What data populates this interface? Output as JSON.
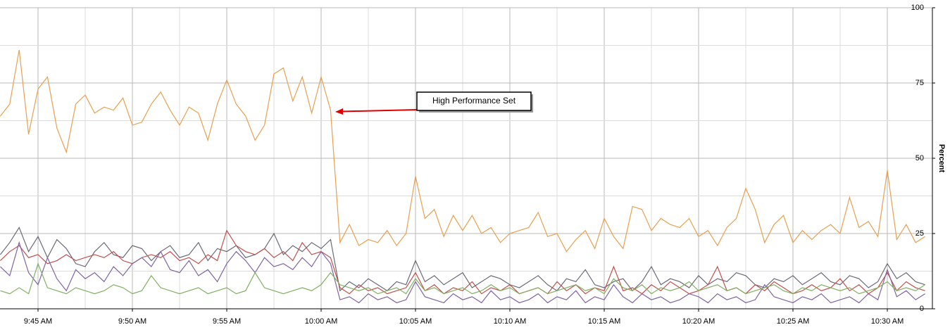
{
  "chart_data": {
    "type": "line",
    "y_label": "Percent",
    "annotation": "High Performance Set",
    "categories": [
      null,
      null,
      null,
      null,
      "9:45 AM",
      null,
      null,
      null,
      null,
      null,
      null,
      null,
      null,
      null,
      "9:50 AM",
      null,
      null,
      null,
      null,
      null,
      null,
      null,
      null,
      null,
      "9:55 AM",
      null,
      null,
      null,
      null,
      null,
      null,
      null,
      null,
      null,
      "10:00 AM",
      null,
      null,
      null,
      null,
      null,
      null,
      null,
      null,
      null,
      "10:05 AM",
      null,
      null,
      null,
      null,
      null,
      null,
      null,
      null,
      null,
      "10:10 AM",
      null,
      null,
      null,
      null,
      null,
      null,
      null,
      null,
      null,
      "10:15 AM",
      null,
      null,
      null,
      null,
      null,
      null,
      null,
      null,
      null,
      "10:20 AM",
      null,
      null,
      null,
      null,
      null,
      null,
      null,
      null,
      null,
      "10:25 AM",
      null,
      null,
      null,
      null,
      null,
      null,
      null,
      null,
      null,
      "10:30 AM",
      null,
      null,
      null,
      null
    ],
    "series": [
      {
        "color": "#e8a050",
        "values": [
          64,
          68,
          86,
          58,
          73,
          77,
          60,
          52,
          68,
          71,
          65,
          67,
          66,
          70,
          61,
          62,
          68,
          72,
          66,
          61,
          67,
          65,
          56,
          68,
          76,
          68,
          64,
          56,
          61,
          78,
          80,
          69,
          77,
          65,
          77,
          66,
          22,
          28,
          21,
          23,
          22,
          26,
          21,
          25,
          44,
          30,
          33,
          24,
          31,
          26,
          31,
          25,
          27,
          22,
          25,
          26,
          27,
          32,
          24,
          25,
          19,
          23,
          26,
          20,
          30,
          24,
          20,
          34,
          33,
          26,
          30,
          28,
          27,
          30,
          24,
          26,
          21,
          27,
          30,
          40,
          33,
          22,
          28,
          31,
          22,
          26,
          23,
          26,
          28,
          25,
          37,
          27,
          29,
          24,
          46,
          23,
          28,
          22,
          24
        ]
      },
      {
        "color": "#6a6a78",
        "values": [
          18,
          22,
          27,
          19,
          24,
          17,
          23,
          20,
          15,
          14,
          19,
          22,
          18,
          17,
          21,
          20,
          16,
          19,
          21,
          17,
          18,
          22,
          16,
          20,
          19,
          21,
          17,
          18,
          20,
          25,
          18,
          21,
          19,
          22,
          20,
          23,
          6,
          9,
          7,
          10,
          8,
          6,
          9,
          8,
          16,
          9,
          11,
          8,
          10,
          12,
          7,
          9,
          11,
          10,
          8,
          7,
          9,
          11,
          8,
          6,
          10,
          9,
          13,
          8,
          7,
          9,
          10,
          6,
          9,
          14,
          8,
          10,
          9,
          7,
          11,
          8,
          10,
          9,
          12,
          11,
          8,
          7,
          10,
          9,
          11,
          8,
          10,
          12,
          9,
          8,
          11,
          10,
          7,
          9,
          15,
          10,
          12,
          9,
          8
        ]
      },
      {
        "color": "#c0504d",
        "values": [
          16,
          19,
          21,
          17,
          18,
          15,
          16,
          18,
          16,
          17,
          18,
          17,
          19,
          16,
          15,
          17,
          18,
          17,
          19,
          16,
          17,
          15,
          18,
          16,
          26,
          21,
          19,
          18,
          20,
          17,
          19,
          16,
          22,
          18,
          19,
          17,
          7,
          5,
          8,
          6,
          7,
          5,
          6,
          7,
          12,
          6,
          8,
          5,
          7,
          6,
          9,
          5,
          7,
          6,
          8,
          5,
          6,
          7,
          5,
          9,
          6,
          8,
          5,
          7,
          6,
          14,
          6,
          7,
          5,
          8,
          6,
          9,
          7,
          5,
          6,
          8,
          14,
          6,
          7,
          5,
          8,
          6,
          9,
          7,
          5,
          6,
          8,
          6,
          7,
          10,
          6,
          8,
          5,
          7,
          12,
          6,
          9,
          7,
          6
        ]
      },
      {
        "color": "#8064a2",
        "values": [
          14,
          11,
          22,
          12,
          8,
          17,
          10,
          6,
          13,
          10,
          12,
          9,
          14,
          11,
          15,
          17,
          14,
          19,
          13,
          12,
          16,
          11,
          13,
          9,
          15,
          19,
          16,
          12,
          17,
          14,
          15,
          13,
          17,
          14,
          19,
          15,
          3,
          4,
          2,
          5,
          3,
          4,
          2,
          3,
          9,
          4,
          3,
          2,
          5,
          3,
          4,
          2,
          6,
          3,
          4,
          2,
          3,
          5,
          2,
          4,
          3,
          6,
          2,
          4,
          3,
          8,
          4,
          2,
          5,
          3,
          4,
          2,
          3,
          5,
          4,
          2,
          5,
          3,
          4,
          2,
          3,
          8,
          4,
          3,
          2,
          4,
          3,
          5,
          2,
          3,
          4,
          2,
          5,
          3,
          13,
          4,
          6,
          3,
          5
        ]
      },
      {
        "color": "#7fb060",
        "values": [
          6,
          5,
          7,
          5,
          15,
          7,
          6,
          5,
          7,
          6,
          5,
          6,
          8,
          7,
          5,
          6,
          11,
          7,
          6,
          5,
          6,
          7,
          5,
          6,
          7,
          5,
          6,
          12,
          7,
          6,
          5,
          6,
          7,
          6,
          8,
          12,
          8,
          7,
          6,
          7,
          5,
          6,
          7,
          5,
          10,
          6,
          7,
          5,
          6,
          7,
          5,
          6,
          8,
          6,
          7,
          5,
          6,
          7,
          5,
          6,
          7,
          8,
          6,
          7,
          5,
          10,
          7,
          6,
          8,
          5,
          7,
          6,
          7,
          9,
          6,
          7,
          8,
          6,
          7,
          5,
          6,
          7,
          8,
          6,
          5,
          7,
          6,
          8,
          7,
          6,
          7,
          5,
          6,
          7,
          9,
          6,
          7,
          6,
          8
        ]
      }
    ],
    "ylim": [
      0,
      100
    ],
    "yticks": [
      0,
      25,
      50,
      75,
      100
    ],
    "grid": true
  }
}
